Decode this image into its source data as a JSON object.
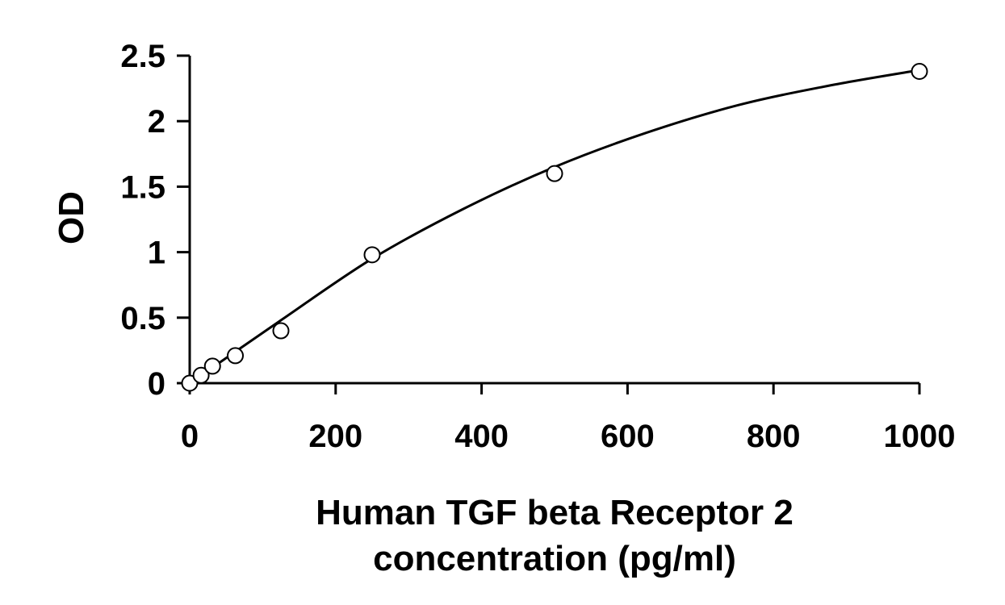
{
  "chart_data": {
    "type": "scatter",
    "xlabel_lines": [
      "Human TGF beta Receptor 2",
      "concentration (pg/ml)"
    ],
    "ylabel": "OD",
    "xlim": [
      0,
      1000
    ],
    "ylim": [
      0,
      2.5
    ],
    "x_ticks": [
      0,
      200,
      400,
      600,
      800,
      1000
    ],
    "y_ticks": [
      0,
      0.5,
      1,
      1.5,
      2,
      2.5
    ],
    "x_tick_labels": [
      "0",
      "200",
      "400",
      "600",
      "800",
      "1000"
    ],
    "y_tick_labels": [
      "0",
      "0.5",
      "1",
      "1.5",
      "2",
      "2.5"
    ],
    "grid": false,
    "legend": "none",
    "colors": {
      "line": "#000000",
      "marker_fill": "#ffffff",
      "marker_stroke": "#000000"
    },
    "series": [
      {
        "x": [
          0,
          15.6,
          31.25,
          62.5,
          125,
          250,
          500,
          1000
        ],
        "y": [
          0.0,
          0.06,
          0.13,
          0.21,
          0.4,
          0.98,
          1.6,
          2.38
        ],
        "marker": "open-circle"
      }
    ],
    "fit_curve": {
      "x": [
        0,
        15.6,
        31.25,
        62.5,
        125,
        250,
        375,
        500,
        625,
        750,
        875,
        1000
      ],
      "y": [
        0.0,
        0.06,
        0.12,
        0.24,
        0.48,
        0.95,
        1.33,
        1.65,
        1.91,
        2.12,
        2.27,
        2.39
      ]
    }
  }
}
